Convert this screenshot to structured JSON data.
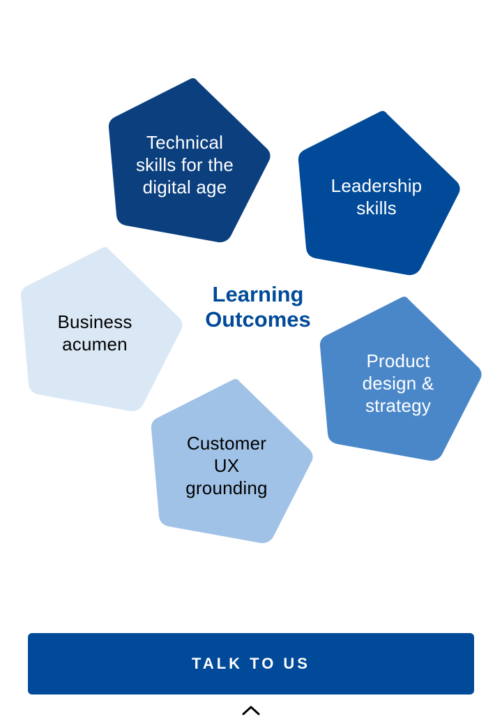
{
  "diagram": {
    "center_title": "Learning Outcomes",
    "outcomes": [
      {
        "id": "technical",
        "label": "Technical skills for the digital age",
        "fill": "#0b3f7e",
        "text_color": "#ffffff"
      },
      {
        "id": "leadership",
        "label": "Leadership skills",
        "fill": "#004a99",
        "text_color": "#ffffff"
      },
      {
        "id": "business",
        "label": "Business acumen",
        "fill": "#dae8f5",
        "text_color": "#000000"
      },
      {
        "id": "product",
        "label": "Product design & strategy",
        "fill": "#4a87c8",
        "text_color": "#ffffff"
      },
      {
        "id": "customer",
        "label": "Customer UX grounding",
        "fill": "#a0c2e6",
        "text_color": "#000000"
      }
    ]
  },
  "cta": {
    "label": "TALK TO US",
    "color": "#004a99"
  },
  "footer": {
    "icon": "chevron-up-icon"
  }
}
